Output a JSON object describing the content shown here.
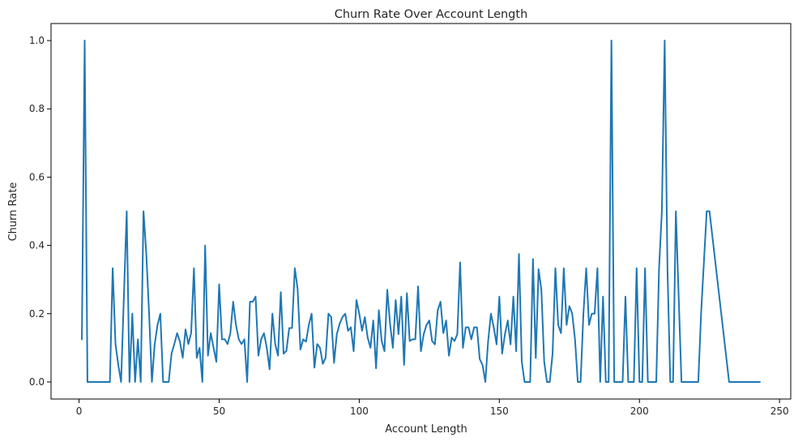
{
  "chart_data": {
    "type": "line",
    "title": "Churn Rate Over Account Length",
    "xlabel": "Account Length",
    "ylabel": "Churn Rate",
    "xlim": [
      -10,
      254
    ],
    "ylim": [
      -0.05,
      1.05
    ],
    "xticks": [
      0,
      50,
      100,
      150,
      200,
      250
    ],
    "xtick_labels": [
      "0",
      "50",
      "100",
      "150",
      "200",
      "250"
    ],
    "yticks": [
      0.0,
      0.2,
      0.4,
      0.6,
      0.8,
      1.0
    ],
    "ytick_labels": [
      "0.0",
      "0.2",
      "0.4",
      "0.6",
      "0.8",
      "1.0"
    ],
    "grid": false,
    "line_color": "#1f77b4",
    "x": [
      1,
      2,
      3,
      4,
      5,
      6,
      7,
      8,
      9,
      10,
      11,
      12,
      13,
      14,
      15,
      16,
      17,
      18,
      19,
      20,
      21,
      22,
      23,
      24,
      25,
      26,
      27,
      28,
      29,
      30,
      31,
      32,
      33,
      34,
      35,
      36,
      37,
      38,
      39,
      40,
      41,
      42,
      43,
      44,
      45,
      46,
      47,
      48,
      49,
      50,
      51,
      52,
      53,
      54,
      55,
      56,
      57,
      58,
      59,
      60,
      61,
      62,
      63,
      64,
      65,
      66,
      67,
      68,
      69,
      70,
      71,
      72,
      73,
      74,
      75,
      76,
      77,
      78,
      79,
      80,
      81,
      82,
      83,
      84,
      85,
      86,
      87,
      88,
      89,
      90,
      91,
      92,
      93,
      94,
      95,
      96,
      97,
      98,
      99,
      100,
      101,
      102,
      103,
      104,
      105,
      106,
      107,
      108,
      109,
      110,
      111,
      112,
      113,
      114,
      115,
      116,
      117,
      118,
      119,
      120,
      121,
      122,
      123,
      124,
      125,
      126,
      127,
      128,
      129,
      130,
      131,
      132,
      133,
      134,
      135,
      136,
      137,
      138,
      139,
      140,
      141,
      142,
      143,
      144,
      145,
      146,
      147,
      148,
      149,
      150,
      151,
      152,
      153,
      154,
      155,
      156,
      157,
      158,
      159,
      160,
      161,
      162,
      163,
      164,
      165,
      166,
      167,
      168,
      169,
      170,
      171,
      172,
      173,
      174,
      175,
      176,
      177,
      178,
      179,
      180,
      181,
      182,
      183,
      184,
      185,
      186,
      187,
      188,
      189,
      190,
      191,
      192,
      193,
      194,
      195,
      196,
      197,
      198,
      199,
      200,
      201,
      202,
      203,
      204,
      205,
      206,
      207,
      208,
      209,
      210,
      211,
      212,
      213,
      214,
      215,
      216,
      217,
      218,
      219,
      220,
      221,
      222,
      224,
      225,
      232,
      243
    ],
    "y": [
      0.125,
      1.0,
      0,
      0,
      0,
      0,
      0,
      0,
      0,
      0,
      0,
      0.333,
      0.111,
      0.05,
      0,
      0.25,
      0.5,
      0,
      0.2,
      0,
      0.125,
      0,
      0.5,
      0.375,
      0.2,
      0,
      0.111,
      0.167,
      0.2,
      0,
      0,
      0,
      0.083,
      0.111,
      0.143,
      0.118,
      0.071,
      0.154,
      0.111,
      0.143,
      0.333,
      0.071,
      0.1,
      0,
      0.4,
      0.077,
      0.143,
      0.1,
      0.059,
      0.286,
      0.125,
      0.125,
      0.111,
      0.143,
      0.235,
      0.167,
      0.125,
      0.111,
      0.125,
      0,
      0.235,
      0.235,
      0.25,
      0.077,
      0.125,
      0.143,
      0.1,
      0.037,
      0.2,
      0.111,
      0.077,
      0.263,
      0.083,
      0.091,
      0.158,
      0.158,
      0.333,
      0.273,
      0.095,
      0.125,
      0.118,
      0.167,
      0.2,
      0.042,
      0.111,
      0.1,
      0.053,
      0.071,
      0.2,
      0.19,
      0.056,
      0.14,
      0.17,
      0.19,
      0.2,
      0.15,
      0.16,
      0.09,
      0.24,
      0.2,
      0.15,
      0.19,
      0.13,
      0.1,
      0.18,
      0.04,
      0.21,
      0.12,
      0.09,
      0.27,
      0.17,
      0.1,
      0.24,
      0.14,
      0.25,
      0.05,
      0.26,
      0.12,
      0.125,
      0.125,
      0.28,
      0.09,
      0.14,
      0.167,
      0.18,
      0.12,
      0.11,
      0.21,
      0.235,
      0.143,
      0.18,
      0.077,
      0.13,
      0.12,
      0.14,
      0.35,
      0.1,
      0.16,
      0.16,
      0.125,
      0.16,
      0.16,
      0.067,
      0.05,
      0,
      0.12,
      0.2,
      0.16,
      0.11,
      0.25,
      0.083,
      0.14,
      0.18,
      0.11,
      0.25,
      0.09,
      0.375,
      0.06,
      0,
      0,
      0,
      0.36,
      0.07,
      0.33,
      0.27,
      0.06,
      0,
      0,
      0.083,
      0.333,
      0.167,
      0.143,
      0.333,
      0.167,
      0.222,
      0.2,
      0.125,
      0,
      0,
      0.2,
      0.333,
      0.167,
      0.2,
      0.2,
      0.333,
      0,
      0.25,
      0,
      0,
      1.0,
      0,
      0,
      0,
      0,
      0.25,
      0,
      0,
      0,
      0.333,
      0,
      0,
      0.333,
      0,
      0,
      0,
      0,
      0.333,
      0.5,
      1.0,
      0.333,
      0,
      0,
      0.5,
      0.25,
      0,
      0,
      0,
      0,
      0,
      0,
      0,
      0.2,
      0.5,
      0.5,
      0,
      0
    ]
  }
}
